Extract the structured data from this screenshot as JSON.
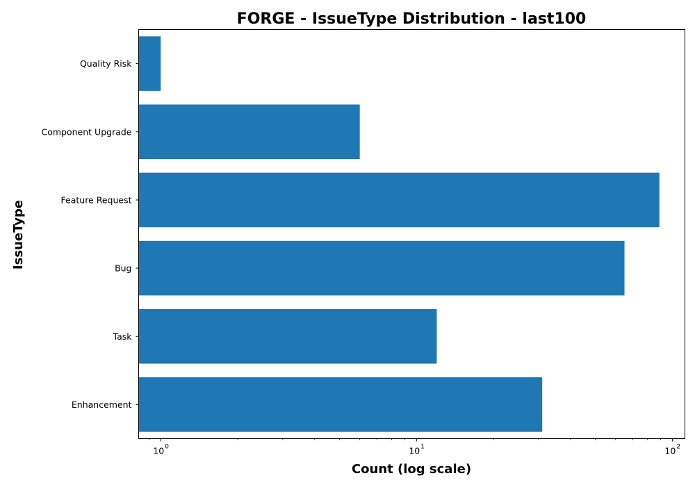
{
  "chart_data": {
    "type": "bar",
    "orientation": "horizontal",
    "title": "FORGE - IssueType Distribution - last100",
    "xlabel": "Count (log scale)",
    "ylabel": "IssueType",
    "x_scale": "log",
    "xlim": [
      0.82,
      112
    ],
    "x_ticks": [
      {
        "value": 1,
        "base": "10",
        "exp": "0"
      },
      {
        "value": 10,
        "base": "10",
        "exp": "1"
      },
      {
        "value": 100,
        "base": "10",
        "exp": "2"
      }
    ],
    "categories": [
      "Quality Risk",
      "Component  Upgrade",
      "Feature Request",
      "Bug",
      "Task",
      "Enhancement"
    ],
    "values": [
      1,
      6,
      89,
      65,
      12,
      31
    ],
    "bar_color": "#1f77b4",
    "grid": false,
    "legend": "none"
  }
}
